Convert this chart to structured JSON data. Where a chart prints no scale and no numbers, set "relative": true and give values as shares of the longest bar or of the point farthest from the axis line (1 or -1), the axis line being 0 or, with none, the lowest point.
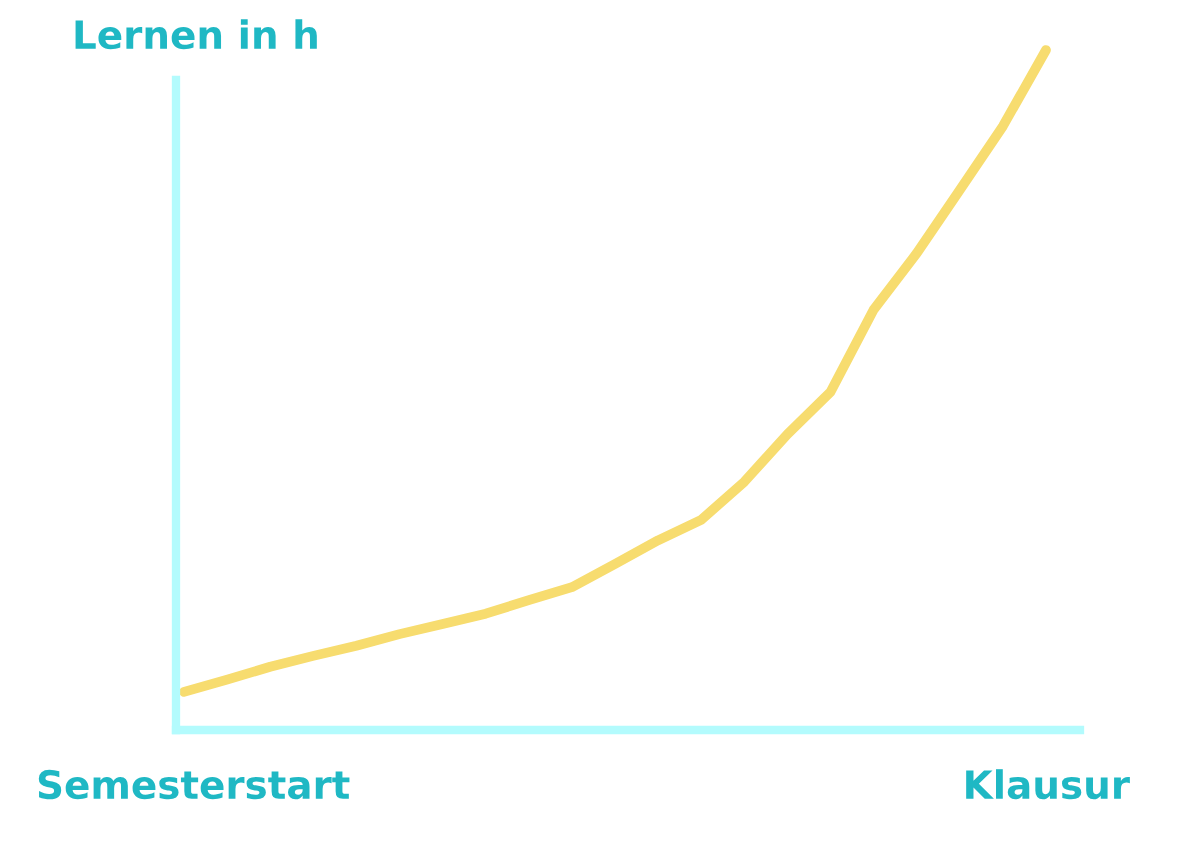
{
  "chart_data": {
    "type": "line",
    "title": "Lernen in h",
    "relative": true,
    "categories": [
      null,
      null,
      null,
      null,
      null,
      null,
      null,
      null,
      null,
      null,
      null,
      null,
      null,
      null,
      null,
      null,
      null,
      null,
      null,
      null,
      null
    ],
    "series": [
      {
        "color": "#f7dc6f",
        "values": [
          0.056,
          0.074,
          0.093,
          0.109,
          0.124,
          0.141,
          0.156,
          0.171,
          0.191,
          0.21,
          0.244,
          0.279,
          0.309,
          0.365,
          0.435,
          0.497,
          0.618,
          0.701,
          0.794,
          0.888,
          1.0
        ]
      }
    ],
    "annotations": [
      "Semesterstart",
      "Klausur"
    ],
    "legend": false,
    "marker": "none",
    "line_style": "solid"
  }
}
